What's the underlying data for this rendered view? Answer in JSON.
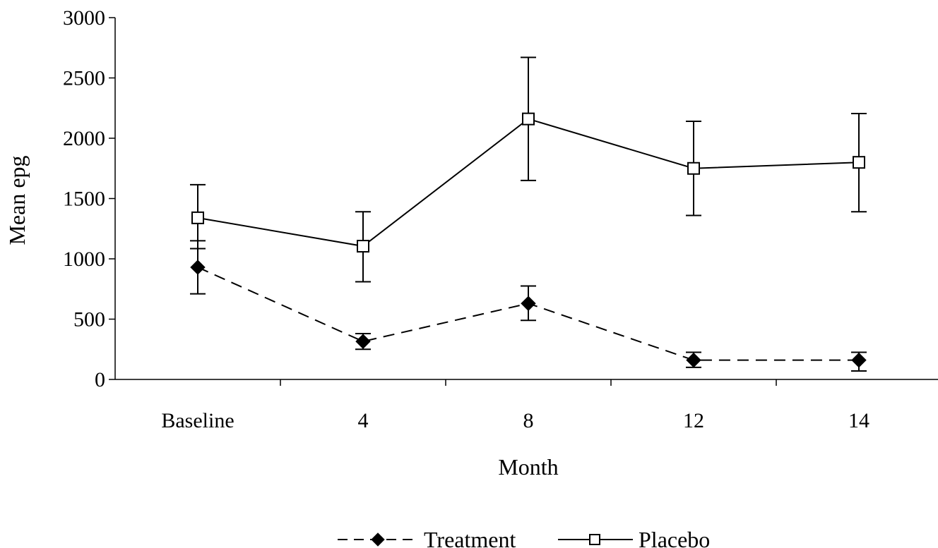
{
  "chart_data": {
    "type": "line",
    "title": "",
    "xlabel": "Month",
    "ylabel": "Mean epg",
    "categories": [
      "Baseline",
      "4",
      "8",
      "12",
      "14"
    ],
    "ylim": [
      0,
      3000
    ],
    "yticks": [
      0,
      500,
      1000,
      1500,
      2000,
      2500,
      3000
    ],
    "grid": false,
    "legend_position": "bottom",
    "series": [
      {
        "name": "Treatment",
        "values": [
          930,
          315,
          630,
          160,
          160
        ],
        "error_low": [
          710,
          250,
          490,
          100,
          70
        ],
        "error_high": [
          1150,
          380,
          775,
          225,
          225
        ],
        "marker": "filled-diamond",
        "line_style": "dashed",
        "color": "#000000"
      },
      {
        "name": "Placebo",
        "values": [
          1340,
          1105,
          2160,
          1750,
          1800
        ],
        "error_low": [
          1085,
          810,
          1650,
          1360,
          1390
        ],
        "error_high": [
          1615,
          1390,
          2670,
          2140,
          2205
        ],
        "marker": "open-square",
        "line_style": "solid",
        "color": "#000000"
      }
    ]
  }
}
